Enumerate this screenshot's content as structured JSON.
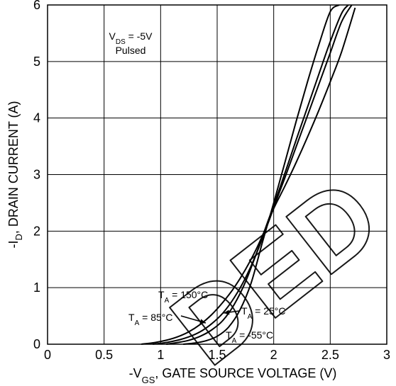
{
  "chart_data": {
    "type": "line",
    "title": "",
    "xlabel": {
      "prefix": "-V",
      "sub": "GS",
      "suffix": ", GATE SOURCE VOLTAGE (V)"
    },
    "ylabel": {
      "prefix": "-I",
      "sub": "D",
      "suffix": ", DRAIN CURRENT (A)"
    },
    "xlim": [
      0,
      3
    ],
    "ylim": [
      0,
      6
    ],
    "xticks": [
      {
        "value": 0,
        "label": "0"
      },
      {
        "value": 0.5,
        "label": "0.5"
      },
      {
        "value": 1,
        "label": "1"
      },
      {
        "value": 1.5,
        "label": "1.5"
      },
      {
        "value": 2,
        "label": "2"
      },
      {
        "value": 2.5,
        "label": "2.5"
      },
      {
        "value": 3,
        "label": "3"
      }
    ],
    "yticks": [
      {
        "value": 0,
        "label": "0"
      },
      {
        "value": 1,
        "label": "1"
      },
      {
        "value": 2,
        "label": "2"
      },
      {
        "value": 3,
        "label": "3"
      },
      {
        "value": 4,
        "label": "4"
      },
      {
        "value": 5,
        "label": "5"
      },
      {
        "value": 6,
        "label": "6"
      }
    ],
    "grid": true,
    "conditions": {
      "vds": {
        "prefix": "V",
        "sub": "DS",
        "suffix": " = -5V"
      },
      "mode": "Pulsed"
    },
    "series": [
      {
        "key": "ta150",
        "label": {
          "prefix": "T",
          "sub": "A",
          "suffix": " = 150°C"
        },
        "x": [
          0.83,
          0.95,
          1.05,
          1.15,
          1.25,
          1.35,
          1.45,
          1.55,
          1.65,
          1.75,
          1.85,
          1.95,
          2.0,
          2.1,
          2.2,
          2.3,
          2.4,
          2.5,
          2.6,
          2.72
        ],
        "y": [
          0.0,
          0.03,
          0.07,
          0.13,
          0.22,
          0.35,
          0.52,
          0.74,
          1.0,
          1.32,
          1.7,
          2.15,
          2.4,
          2.8,
          3.22,
          3.67,
          4.14,
          4.64,
          5.17,
          5.95
        ]
      },
      {
        "key": "ta85",
        "label": {
          "prefix": "T",
          "sub": "A",
          "suffix": " = 85°C"
        },
        "x": [
          0.93,
          1.05,
          1.15,
          1.25,
          1.35,
          1.45,
          1.55,
          1.65,
          1.75,
          1.85,
          1.95,
          2.0,
          2.1,
          2.2,
          2.3,
          2.4,
          2.5,
          2.6,
          2.69
        ],
        "y": [
          0.0,
          0.03,
          0.07,
          0.13,
          0.22,
          0.36,
          0.55,
          0.82,
          1.17,
          1.62,
          2.14,
          2.42,
          2.95,
          3.5,
          4.05,
          4.6,
          5.15,
          5.7,
          6.0
        ]
      },
      {
        "key": "ta25",
        "label": {
          "prefix": "T",
          "sub": "A",
          "suffix": " = 25°C"
        },
        "x": [
          1.05,
          1.15,
          1.25,
          1.35,
          1.45,
          1.55,
          1.65,
          1.75,
          1.85,
          1.95,
          2.0,
          2.1,
          2.2,
          2.3,
          2.4,
          2.5,
          2.6,
          2.66
        ],
        "y": [
          0.0,
          0.03,
          0.07,
          0.14,
          0.25,
          0.42,
          0.7,
          1.1,
          1.62,
          2.18,
          2.45,
          3.03,
          3.62,
          4.2,
          4.78,
          5.35,
          5.85,
          6.0
        ]
      },
      {
        "key": "ta-55",
        "label": {
          "prefix": "T",
          "sub": "A",
          "suffix": " = -55°C"
        },
        "x": [
          1.2,
          1.3,
          1.4,
          1.5,
          1.6,
          1.7,
          1.8,
          1.9,
          2.0,
          2.1,
          2.2,
          2.3,
          2.4,
          2.5,
          2.58
        ],
        "y": [
          0.0,
          0.02,
          0.06,
          0.14,
          0.3,
          0.6,
          1.08,
          1.8,
          2.5,
          3.22,
          3.95,
          4.65,
          5.3,
          5.88,
          6.0
        ]
      }
    ],
    "annotations": [
      {
        "target": "ta150",
        "text": {
          "prefix": "T",
          "sub": "A",
          "suffix": " = 150°C"
        },
        "arrow": false
      },
      {
        "target": "ta85",
        "text": {
          "prefix": "T",
          "sub": "A",
          "suffix": " = 85°C"
        },
        "arrow": true
      },
      {
        "target": "ta25",
        "text": {
          "prefix": "T",
          "sub": "A",
          "suffix": " = 25°C"
        },
        "arrow": true
      },
      {
        "target": "ta-55",
        "text": {
          "prefix": "T",
          "sub": "A",
          "suffix": " = -55°C"
        },
        "arrow": false
      }
    ],
    "watermark": "DED"
  }
}
